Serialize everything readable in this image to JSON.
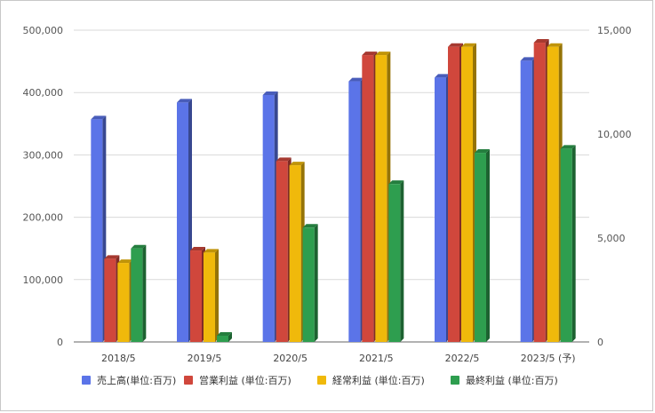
{
  "chart_data": {
    "type": "bar",
    "categories": [
      "2018/5",
      "2019/5",
      "2020/5",
      "2021/5",
      "2022/5",
      "2023/5 (予)"
    ],
    "series": [
      {
        "name": "売上高(単位:百万)",
        "axis": "left",
        "color": "#5b74e8",
        "values": [
          357000,
          384000,
          396000,
          418000,
          424000,
          451000
        ]
      },
      {
        "name": "営業利益 (単位:百万)",
        "axis": "right",
        "color": "#d0473c",
        "values": [
          4000,
          4400,
          8700,
          13800,
          14200,
          14400
        ]
      },
      {
        "name": "経常利益 (単位:百万)",
        "axis": "right",
        "color": "#f0b90b",
        "values": [
          3800,
          4300,
          8500,
          13800,
          14200,
          14200
        ]
      },
      {
        "name": "最終利益 (単位:百万)",
        "axis": "right",
        "color": "#2e9e4f",
        "values": [
          4500,
          300,
          5500,
          7600,
          9100,
          9300
        ]
      }
    ],
    "ylim_left": [
      0,
      500000
    ],
    "ylim_right": [
      0,
      15000
    ],
    "yticks_left": [
      "0",
      "100,000",
      "200,000",
      "300,000",
      "400,000",
      "500,000"
    ],
    "yticks_right": [
      "0",
      "5,000",
      "10,000",
      "15,000"
    ],
    "grid": true,
    "legend_position": "bottom"
  }
}
